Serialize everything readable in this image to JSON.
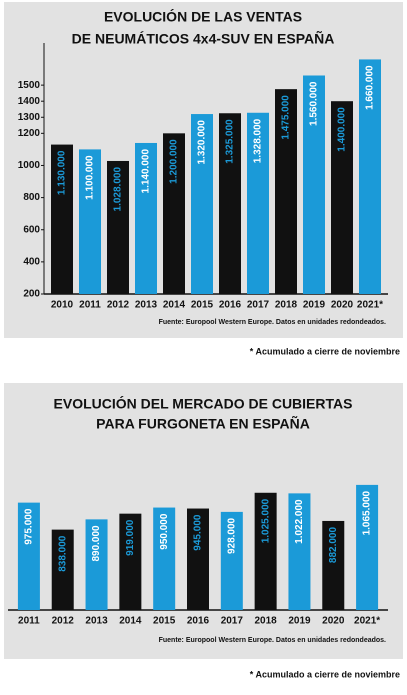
{
  "chart_data": [
    {
      "type": "bar",
      "title": [
        "EVOLUCIÓN DE LAS VENTAS",
        "DE NEUMÁTICOS 4x4-SUV EN ESPAÑA"
      ],
      "categories": [
        "2010",
        "2011",
        "2012",
        "2013",
        "2014",
        "2015",
        "2016",
        "2017",
        "2018",
        "2019",
        "2020",
        "2021*"
      ],
      "values": [
        1130,
        1100,
        1028,
        1140,
        1200,
        1320,
        1325,
        1328,
        1475,
        1560,
        1400,
        1660
      ],
      "value_labels": [
        "1.130.000",
        "1.100.000",
        "1.028.000",
        "1.140.000",
        "1.200.000",
        "1.320.000",
        "1.325.000",
        "1.328.000",
        "1.475.000",
        "1.560.000",
        "1.400.000",
        "1.660.000"
      ],
      "colors": [
        "#111111",
        "#1b9ad8",
        "#111111",
        "#1b9ad8",
        "#111111",
        "#1b9ad8",
        "#111111",
        "#1b9ad8",
        "#111111",
        "#1b9ad8",
        "#111111",
        "#1b9ad8"
      ],
      "ylim": [
        200,
        1700
      ],
      "yticks": [
        200,
        400,
        600,
        800,
        1000,
        1200,
        1300,
        1400,
        1500
      ],
      "source": "Fuente: Europool Western Europe. Datos en unidades redondeados.",
      "note": "* Acumulado a cierre de noviembre"
    },
    {
      "type": "bar",
      "title": [
        "EVOLUCIÓN DEL MERCADO DE CUBIERTAS",
        "PARA FURGONETA EN ESPAÑA"
      ],
      "categories": [
        "2011",
        "2012",
        "2013",
        "2014",
        "2015",
        "2016",
        "2017",
        "2018",
        "2019",
        "2020",
        "2021*"
      ],
      "values": [
        975,
        838,
        890,
        919,
        950,
        945,
        928,
        1025,
        1022,
        882,
        1065
      ],
      "value_labels": [
        "975.000",
        "838.000",
        "890.000",
        "919.000",
        "950.000",
        "945.000",
        "928.000",
        "1.025.000",
        "1.022.000",
        "882.000",
        "1.065.000"
      ],
      "colors": [
        "#1b9ad8",
        "#111111",
        "#1b9ad8",
        "#111111",
        "#1b9ad8",
        "#111111",
        "#1b9ad8",
        "#111111",
        "#1b9ad8",
        "#111111",
        "#1b9ad8"
      ],
      "ylim": [
        430,
        1100
      ],
      "source": "Fuente: Europool Western Europe. Datos en unidades redondeados.",
      "note": "* Acumulado a cierre de noviembre"
    }
  ]
}
